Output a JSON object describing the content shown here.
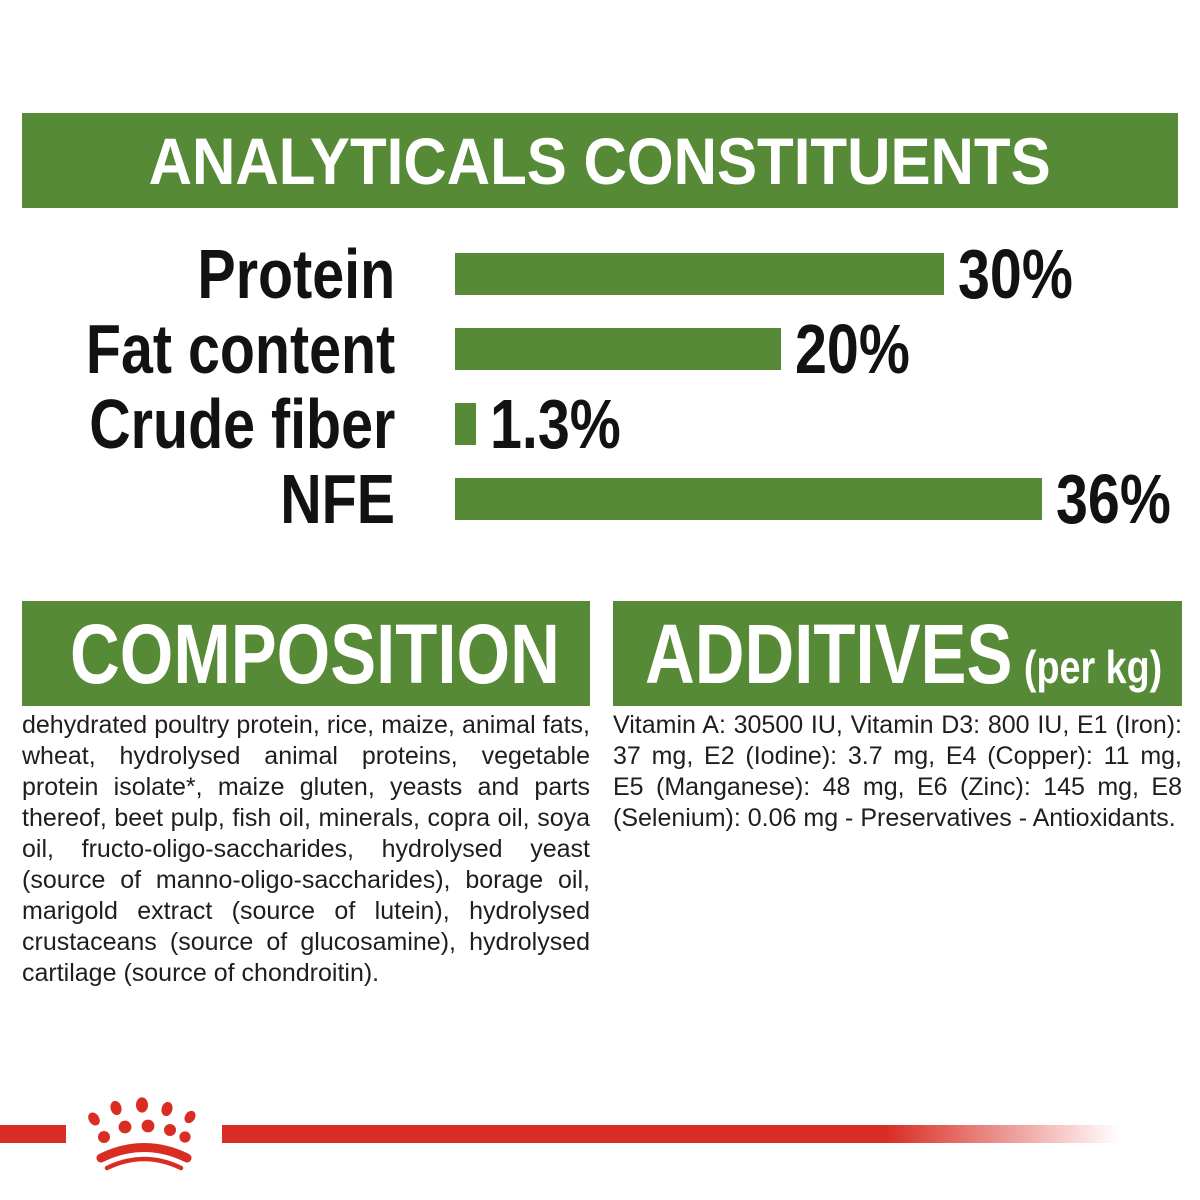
{
  "colors": {
    "green": "#568a36",
    "red": "#d92d24",
    "ink": "#1e1e1e"
  },
  "analyticals": {
    "title": "ANALYTICALS CONSTITUENTS"
  },
  "chart_data": {
    "type": "bar",
    "orientation": "horizontal",
    "title": "ANALYTICALS CONSTITUENTS",
    "categories": [
      "Protein",
      "Fat content",
      "Crude fiber",
      "NFE"
    ],
    "values": [
      30,
      20,
      1.3,
      36
    ],
    "value_labels": [
      "30%",
      "20%",
      "1.3%",
      "36%"
    ],
    "unit": "%",
    "xlim": [
      0,
      36
    ],
    "bar_color": "#568a36",
    "grid": false,
    "legend": false
  },
  "composition": {
    "title": "COMPOSITION",
    "body": "dehydrated poultry protein, rice, maize, animal fats, wheat, hydrolysed animal proteins, vegetable protein isolate*, maize gluten, yeasts and parts thereof, beet pulp, fish oil, minerals, copra oil, soya oil, fructo-oligo-saccharides, hydrolysed yeast (source of manno-oligo-saccharides), borage oil, marigold extract (source of lutein), hydrolysed crustaceans (source of glucosamine), hydrolysed cartilage (source of chondroitin)."
  },
  "additives": {
    "title": "ADDITIVES",
    "subtitle": "(per kg)",
    "body": "Vitamin A: 30500 IU, Vitamin D3: 800 IU, E1 (Iron): 37 mg, E2 (Iodine): 3.7 mg, E4 (Copper): 11 mg, E5 (Manganese): 48 mg, E6 (Zinc): 145 mg, E8 (Selenium): 0.06 mg - Preservatives - Antioxidants."
  },
  "footer": {
    "logo": "royal-canin-crown"
  }
}
